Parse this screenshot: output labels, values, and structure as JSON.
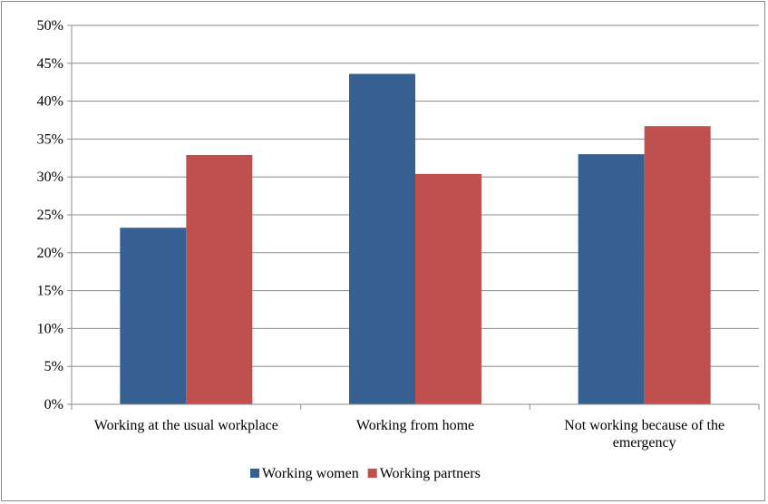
{
  "chart_data": {
    "type": "bar",
    "categories": [
      [
        "Working at the usual workplace"
      ],
      [
        "Working from home"
      ],
      [
        "Not working because of the",
        "emergency"
      ]
    ],
    "series": [
      {
        "name": "Working women",
        "color": "#376092",
        "values": [
          23.3,
          43.6,
          33.0
        ]
      },
      {
        "name": "Working partners",
        "color": "#C0504D",
        "values": [
          32.9,
          30.4,
          36.7
        ]
      }
    ],
    "ylim": [
      0,
      50
    ],
    "yticks": [
      0,
      5,
      10,
      15,
      20,
      25,
      30,
      35,
      40,
      45,
      50
    ],
    "ytick_labels": [
      "0%",
      "5%",
      "10%",
      "15%",
      "20%",
      "25%",
      "30%",
      "35%",
      "40%",
      "45%",
      "50%"
    ],
    "grid": true,
    "legend_position": "bottom"
  }
}
